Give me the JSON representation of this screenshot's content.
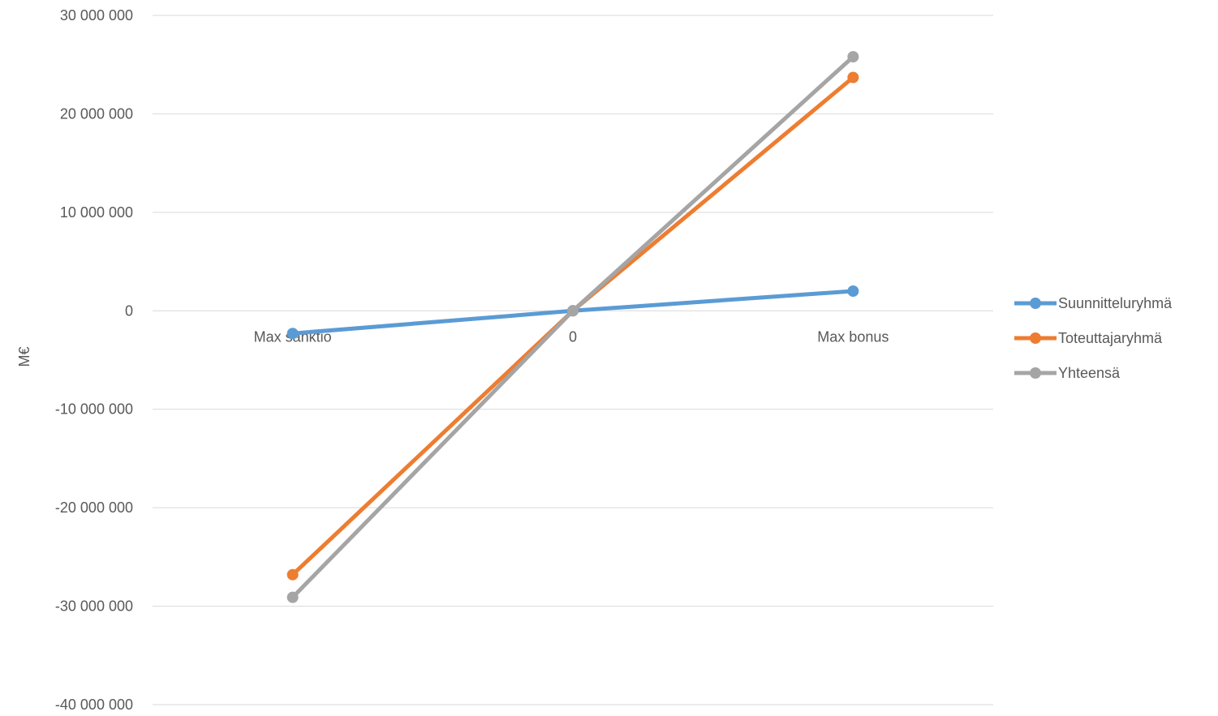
{
  "chart_data": {
    "type": "line",
    "categories": [
      "Max sanktio",
      "0",
      "Max bonus"
    ],
    "series": [
      {
        "name": "Suunnitteluryhmä",
        "values": [
          -2300000,
          0,
          2000000
        ],
        "color": "#5b9bd5"
      },
      {
        "name": "Toteuttajaryhmä",
        "values": [
          -26800000,
          0,
          23700000
        ],
        "color": "#ed7d31"
      },
      {
        "name": "Yhteensä",
        "values": [
          -29100000,
          0,
          25800000
        ],
        "color": "#a5a5a5"
      }
    ],
    "ylabel": "M€",
    "ylim": [
      -40000000,
      30000000
    ],
    "yticks": [
      30000000,
      20000000,
      10000000,
      0,
      -10000000,
      -20000000,
      -30000000,
      -40000000
    ],
    "ytick_labels": [
      "30 000 000",
      "20 000 000",
      "10 000 000",
      "0",
      "-10 000 000",
      "-20 000 000",
      "-30 000 000",
      "-40 000 000"
    ],
    "grid": true,
    "legend_position": "right"
  }
}
